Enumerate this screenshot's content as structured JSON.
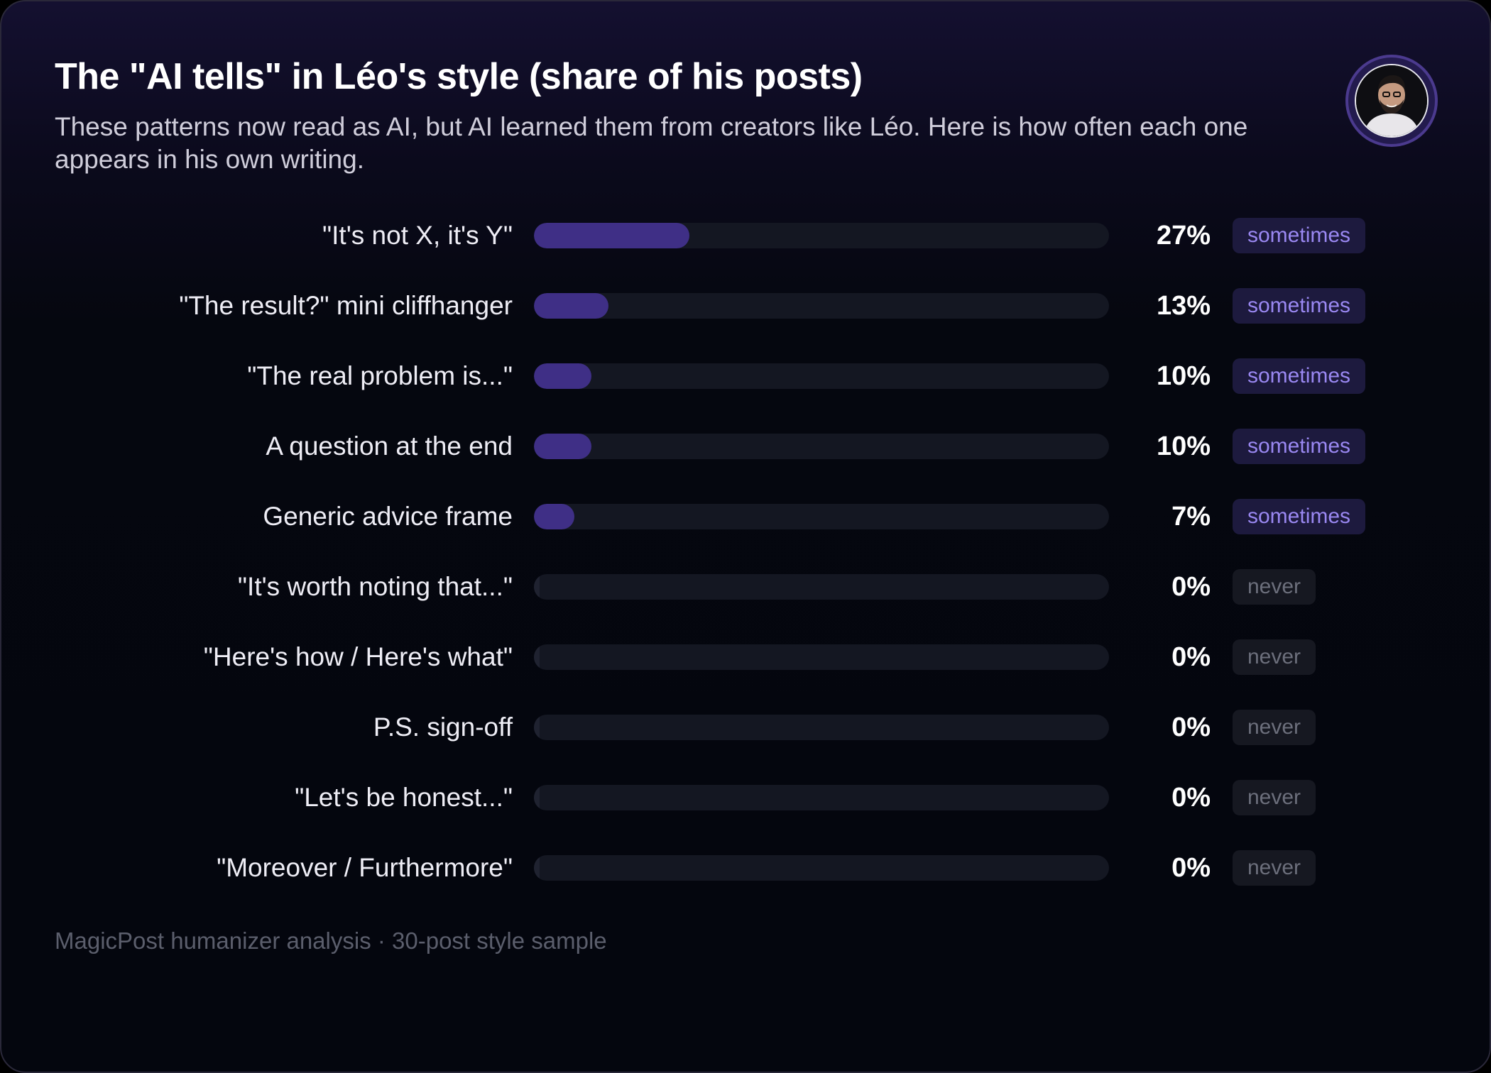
{
  "title": "The \"AI tells\" in Léo's style (share of his posts)",
  "subtitle": "These patterns now read as AI, but AI learned them from creators like Léo. Here is how often each one appears in his own writing.",
  "footer": "MagicPost humanizer analysis · 30-post style sample",
  "colors": {
    "bar_fill": "#3f2f86",
    "bar_track": "#141722",
    "badge_sometimes_text": "#9a88f2",
    "badge_never_text": "#6c6f7c"
  },
  "chart_data": {
    "type": "bar",
    "orientation": "horizontal",
    "title": "The \"AI tells\" in Léo's style (share of his posts)",
    "xlim": [
      0,
      100
    ],
    "grid": false,
    "categories": [
      "\"It's not X, it's Y\"",
      "\"The result?\" mini cliffhanger",
      "\"The real problem is...\"",
      "A question at the end",
      "Generic advice frame",
      "\"It's worth noting that...\"",
      "\"Here's how / Here's what\"",
      "P.S. sign-off",
      "\"Let's be honest...\"",
      "\"Moreover / Furthermore\""
    ],
    "values": [
      27,
      13,
      10,
      10,
      7,
      0,
      0,
      0,
      0,
      0
    ],
    "value_labels": [
      "27%",
      "13%",
      "10%",
      "10%",
      "7%",
      "0%",
      "0%",
      "0%",
      "0%",
      "0%"
    ],
    "frequency_labels": [
      "sometimes",
      "sometimes",
      "sometimes",
      "sometimes",
      "sometimes",
      "never",
      "never",
      "never",
      "never",
      "never"
    ]
  }
}
